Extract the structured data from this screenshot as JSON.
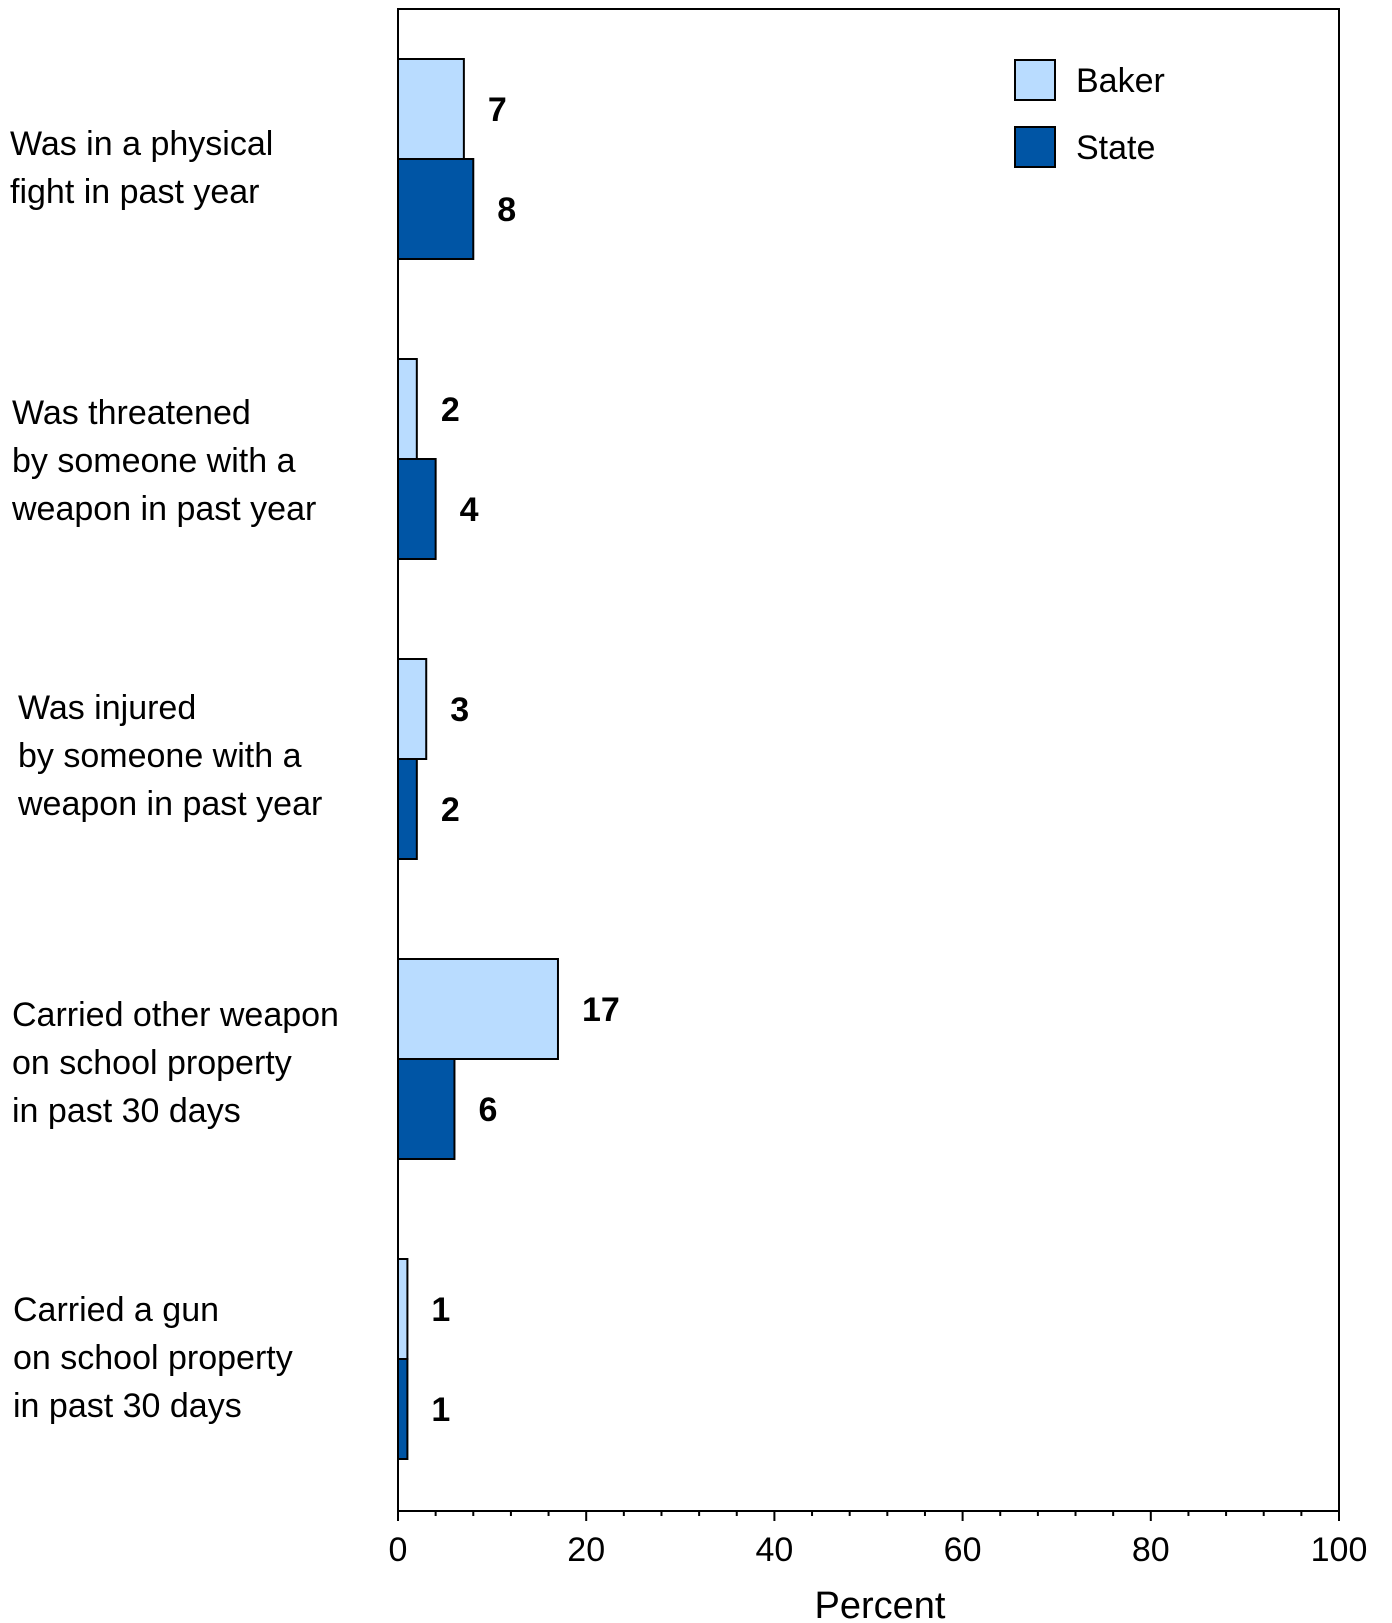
{
  "chart_data": {
    "type": "bar",
    "orientation": "horizontal",
    "categories": [
      [
        "Was in a physical",
        "fight in past year"
      ],
      [
        "Was threatened",
        "by someone with a",
        "weapon in past year"
      ],
      [
        "Was injured",
        "by someone with a",
        "weapon in past year"
      ],
      [
        "Carried other weapon",
        "on school property",
        "in past 30 days"
      ],
      [
        "Carried a gun",
        "on school property",
        "in past 30 days"
      ]
    ],
    "series": [
      {
        "name": "Baker",
        "color": "#b9dcff",
        "values": [
          7,
          2,
          3,
          17,
          1
        ]
      },
      {
        "name": "State",
        "color": "#0055a5",
        "values": [
          8,
          4,
          2,
          6,
          1
        ]
      }
    ],
    "xlabel": "Percent",
    "xlim": [
      0,
      100
    ],
    "xticks": [
      "0",
      "20",
      "40",
      "60",
      "80",
      "100"
    ],
    "legend_position": "top-right",
    "grid": false
  }
}
